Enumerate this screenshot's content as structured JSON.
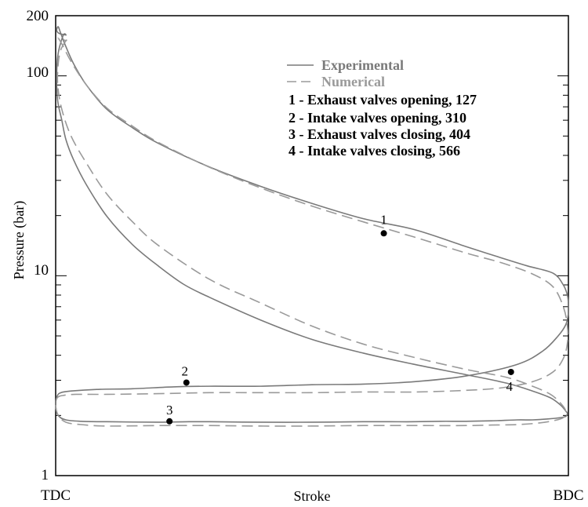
{
  "chart_data": {
    "type": "line",
    "xlabel": "Stroke",
    "ylabel": "Pressure (bar)",
    "x_tick_labels": [
      "TDC",
      "BDC"
    ],
    "xlim": [
      0,
      1
    ],
    "ylim": [
      1,
      200
    ],
    "y_scale": "log",
    "y_tick_labels": [
      {
        "value": 200,
        "label": "200"
      },
      {
        "value": 100,
        "label": "100"
      },
      {
        "value": 10,
        "label": "10"
      },
      {
        "value": 1,
        "label": "1"
      }
    ],
    "grid": false,
    "legend_position": "top-right",
    "colors": {
      "experimental": "#7a7a7a",
      "numerical": "#9a9a9a",
      "axes": "#000000",
      "marker": "#000000"
    },
    "series": [
      {
        "name": "Experimental",
        "style": "solid",
        "x": [
          0.015,
          0.005,
          0.002,
          0.004,
          0.012,
          0.02,
          0.035,
          0.06,
          0.1,
          0.15,
          0.2,
          0.25,
          0.3,
          0.4,
          0.5,
          0.6,
          0.7,
          0.8,
          0.88,
          0.93,
          0.965,
          0.985,
          0.995,
          0.998,
          0.995,
          0.985,
          0.96,
          0.93,
          0.9,
          0.85,
          0.8,
          0.75,
          0.7,
          0.65,
          0.6,
          0.5,
          0.4,
          0.3,
          0.26,
          0.2,
          0.1,
          0.05,
          0.02,
          0.005,
          0.0,
          0.003,
          0.01,
          0.03,
          0.08,
          0.15,
          0.23,
          0.3,
          0.4,
          0.5,
          0.6,
          0.7,
          0.8,
          0.9,
          0.95,
          0.98,
          0.995,
          1.0,
          1.0,
          0.998,
          0.99,
          0.97,
          0.92,
          0.86,
          0.8,
          0.7,
          0.6,
          0.5,
          0.4,
          0.3,
          0.2,
          0.15,
          0.1,
          0.06,
          0.035,
          0.02,
          0.01,
          0.005,
          0.002,
          0.004,
          0.01,
          0.02
        ],
        "y": [
          160,
          130,
          100,
          75,
          60,
          48,
          38,
          28.5,
          19.8,
          14.3,
          11.2,
          9.05,
          7.8,
          6.0,
          4.8,
          4.1,
          3.6,
          3.2,
          2.9,
          2.65,
          2.45,
          2.25,
          2.1,
          2.05,
          1.98,
          1.95,
          1.92,
          1.9,
          1.9,
          1.88,
          1.87,
          1.87,
          1.86,
          1.86,
          1.86,
          1.85,
          1.85,
          1.86,
          1.86,
          1.85,
          1.86,
          1.87,
          1.9,
          2.0,
          2.25,
          2.5,
          2.6,
          2.65,
          2.7,
          2.72,
          2.78,
          2.8,
          2.8,
          2.85,
          2.87,
          2.95,
          3.15,
          3.6,
          4.2,
          5.0,
          5.7,
          6.5,
          7.2,
          8.0,
          9.0,
          10.3,
          11.2,
          12.5,
          14.0,
          17.0,
          19.3,
          23.0,
          28.0,
          35.0,
          46.0,
          55.0,
          68.0,
          90.0,
          115.0,
          140.0,
          163.0,
          176.0,
          170.0,
          165.0,
          162.0,
          160.0
        ]
      },
      {
        "name": "Numerical",
        "style": "dashed",
        "x": [
          0.02,
          0.01,
          0.005,
          0.004,
          0.012,
          0.03,
          0.06,
          0.1,
          0.15,
          0.2,
          0.3,
          0.4,
          0.5,
          0.6,
          0.7,
          0.8,
          0.88,
          0.93,
          0.965,
          0.985,
          0.995,
          0.99,
          0.97,
          0.94,
          0.9,
          0.85,
          0.8,
          0.7,
          0.6,
          0.5,
          0.4,
          0.3,
          0.2,
          0.1,
          0.05,
          0.02,
          0.005,
          0.0,
          0.003,
          0.015,
          0.04,
          0.1,
          0.2,
          0.3,
          0.4,
          0.5,
          0.6,
          0.7,
          0.8,
          0.87,
          0.93,
          0.97,
          0.99,
          0.998,
          0.998,
          0.99,
          0.97,
          0.93,
          0.87,
          0.8,
          0.7,
          0.6,
          0.5,
          0.4,
          0.3,
          0.2,
          0.15,
          0.1,
          0.06,
          0.03,
          0.015,
          0.007,
          0.005,
          0.01,
          0.02
        ],
        "y": [
          150,
          135,
          115,
          90,
          68,
          50,
          36.6,
          25.6,
          18.6,
          14.2,
          9.6,
          7.3,
          5.6,
          4.55,
          3.9,
          3.4,
          3.1,
          2.8,
          2.55,
          2.3,
          2.1,
          1.95,
          1.88,
          1.83,
          1.8,
          1.79,
          1.78,
          1.78,
          1.78,
          1.77,
          1.77,
          1.78,
          1.78,
          1.77,
          1.8,
          1.85,
          2.0,
          2.25,
          2.45,
          2.52,
          2.55,
          2.55,
          2.57,
          2.6,
          2.6,
          2.6,
          2.62,
          2.62,
          2.67,
          2.75,
          2.95,
          3.3,
          3.85,
          4.6,
          5.6,
          7.0,
          8.8,
          10.2,
          11.6,
          13.0,
          15.6,
          18.6,
          22.3,
          27.5,
          34.9,
          46.5,
          56.0,
          69.0,
          90.0,
          118.0,
          140.0,
          152.0,
          155.0,
          153.0,
          150.0
        ]
      }
    ],
    "points": [
      {
        "label": "1",
        "x": 0.64,
        "y": 16.3
      },
      {
        "label": "2",
        "x": 0.255,
        "y": 2.92
      },
      {
        "label": "3",
        "x": 0.222,
        "y": 1.87
      },
      {
        "label": "4",
        "x": 0.888,
        "y": 3.3
      }
    ],
    "legend": {
      "entries": [
        {
          "text": "Experimental",
          "style": "solid"
        },
        {
          "text": "Numerical",
          "style": "dashed"
        }
      ],
      "notes": [
        "1 - Exhaust valves opening, 127",
        "2 - Intake valves opening, 310",
        "3 - Exhaust valves closing, 404",
        "4 - Intake valves closing, 566"
      ]
    }
  }
}
